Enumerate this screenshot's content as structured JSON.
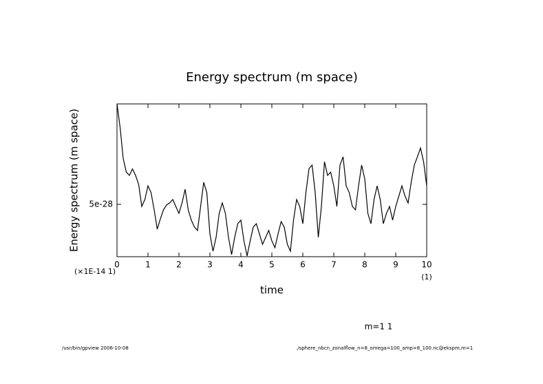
{
  "chart_data": {
    "type": "line",
    "title": "Energy spectrum (m space)",
    "y_label": "Energy spectrum (m space)",
    "x_label": "time",
    "x_scale_note": "(×1E-14 1)",
    "x_unit_note": "(1)",
    "annotation": "m=1 1",
    "footer_left": "/usr/bin/gpview  2006-10-08",
    "footer_right": "./sphere_nbcn_zonalflow_n=8_omega=100_amp=8_100.nc@ekspm,m=1",
    "color": "#000000",
    "x": [
      0,
      0.1,
      0.2,
      0.3,
      0.4,
      0.5,
      0.6,
      0.7,
      0.8,
      0.9,
      1,
      1.1,
      1.2,
      1.3,
      1.4,
      1.5,
      1.6,
      1.7,
      1.8,
      1.9,
      2,
      2.1,
      2.2,
      2.3,
      2.4,
      2.5,
      2.6,
      2.7,
      2.8,
      2.9,
      3,
      3.1,
      3.2,
      3.3,
      3.4,
      3.5,
      3.6,
      3.7,
      3.8,
      3.9,
      4,
      4.1,
      4.2,
      4.3,
      4.4,
      4.5,
      4.6,
      4.7,
      4.8,
      4.9,
      5,
      5.1,
      5.2,
      5.3,
      5.4,
      5.5,
      5.6,
      5.7,
      5.8,
      5.9,
      6,
      6.1,
      6.2,
      6.3,
      6.4,
      6.5,
      6.6,
      6.7,
      6.8,
      6.9,
      7,
      7.1,
      7.2,
      7.3,
      7.4,
      7.5,
      7.6,
      7.7,
      7.8,
      7.9,
      8,
      8.1,
      8.2,
      8.3,
      8.4,
      8.5,
      8.6,
      8.7,
      8.8,
      8.9,
      9,
      9.1,
      9.2,
      9.3,
      9.4,
      9.5,
      9.6,
      9.7,
      9.8,
      9.9,
      10
    ],
    "values": [
      1.124e-27,
      9.79e-28,
      7.86e-28,
      7e-28,
      6.8e-28,
      7.2e-28,
      6.8e-28,
      6.24e-28,
      4.87e-28,
      5.3e-28,
      6.15e-28,
      5.73e-28,
      4.66e-28,
      3.46e-28,
      4.1e-28,
      4.66e-28,
      4.96e-28,
      5.09e-28,
      5.3e-28,
      4.87e-28,
      4.44e-28,
      5.09e-28,
      5.94e-28,
      4.66e-28,
      4.02e-28,
      3.59e-28,
      3.38e-28,
      4.87e-28,
      6.37e-28,
      5.73e-28,
      3.16e-28,
      2.09e-28,
      2.95e-28,
      4.44e-28,
      5.09e-28,
      4.44e-28,
      2.95e-28,
      1.88e-28,
      2.95e-28,
      3.8e-28,
      4.02e-28,
      2.73e-28,
      1.8e-28,
      2.73e-28,
      3.59e-28,
      3.8e-28,
      3.16e-28,
      2.52e-28,
      2.95e-28,
      3.38e-28,
      2.73e-28,
      2.31e-28,
      3.16e-28,
      3.93e-28,
      3.59e-28,
      2.52e-28,
      2.09e-28,
      4.02e-28,
      5.3e-28,
      4.87e-28,
      3.8e-28,
      5.73e-28,
      7.22e-28,
      7.44e-28,
      5.73e-28,
      2.95e-28,
      4.87e-28,
      7.65e-28,
      6.8e-28,
      7e-28,
      6.15e-28,
      4.87e-28,
      7.44e-28,
      7.95e-28,
      6.15e-28,
      5.73e-28,
      4.87e-28,
      4.66e-28,
      6.15e-28,
      7.44e-28,
      6.58e-28,
      4.44e-28,
      3.8e-28,
      5.3e-28,
      6.15e-28,
      5.3e-28,
      3.8e-28,
      4.44e-28,
      4.87e-28,
      4.02e-28,
      4.87e-28,
      5.51e-28,
      6.15e-28,
      5.51e-28,
      5.09e-28,
      6.37e-28,
      7.44e-28,
      7.95e-28,
      8.5e-28,
      7.65e-28,
      6.15e-28
    ],
    "xlim": [
      0,
      10
    ],
    "xticks": [
      0,
      1,
      2,
      3,
      4,
      5,
      6,
      7,
      8,
      9,
      10
    ],
    "ylim": [
      1.75e-28,
      1.124e-27
    ],
    "yticks": [
      5e-28
    ]
  }
}
